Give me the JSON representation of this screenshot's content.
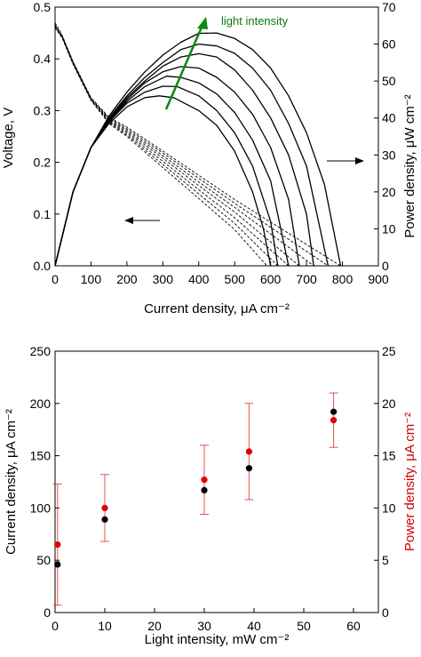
{
  "colors": {
    "axis": "#000000",
    "power_density_series": "#e00000",
    "current_density_series": "#000000",
    "light_arrow": "#0a8a0a",
    "power_axis_title": "#d00000"
  },
  "chart_data": [
    {
      "type": "line",
      "xlabel": "Current density, μA cm⁻²",
      "ylabel": "Voltage, V",
      "y2label": "Power density, μW cm⁻²",
      "xlim": [
        0,
        900
      ],
      "ylim": [
        0,
        0.5
      ],
      "y2lim": [
        0,
        70
      ],
      "xticks": [
        "0",
        "100",
        "200",
        "300",
        "400",
        "500",
        "600",
        "700",
        "800",
        "900"
      ],
      "yticks": [
        "0.0",
        "0.1",
        "0.2",
        "0.3",
        "0.4",
        "0.5"
      ],
      "y2ticks": [
        "0",
        "10",
        "20",
        "30",
        "40",
        "50",
        "60",
        "70"
      ],
      "annotation": "light intensity",
      "series": [
        {
          "style": "dashed",
          "axis": "left",
          "x": [
            0,
            20,
            50,
            100,
            150,
            200,
            300,
            400,
            500,
            590
          ],
          "y": [
            0.46,
            0.44,
            0.39,
            0.32,
            0.275,
            0.25,
            0.19,
            0.13,
            0.07,
            0.0
          ]
        },
        {
          "style": "dashed",
          "axis": "left",
          "x": [
            0,
            20,
            50,
            100,
            150,
            200,
            300,
            400,
            500,
            620
          ],
          "y": [
            0.46,
            0.44,
            0.39,
            0.32,
            0.277,
            0.253,
            0.196,
            0.139,
            0.082,
            0.0
          ]
        },
        {
          "style": "dashed",
          "axis": "left",
          "x": [
            0,
            20,
            50,
            100,
            150,
            200,
            300,
            400,
            500,
            650
          ],
          "y": [
            0.462,
            0.441,
            0.391,
            0.321,
            0.279,
            0.256,
            0.202,
            0.147,
            0.093,
            0.0
          ]
        },
        {
          "style": "dashed",
          "axis": "left",
          "x": [
            0,
            20,
            50,
            100,
            150,
            200,
            300,
            400,
            500,
            680
          ],
          "y": [
            0.464,
            0.442,
            0.392,
            0.322,
            0.281,
            0.259,
            0.208,
            0.155,
            0.104,
            0.0
          ]
        },
        {
          "style": "dashed",
          "axis": "left",
          "x": [
            0,
            20,
            50,
            100,
            150,
            200,
            300,
            400,
            500,
            720
          ],
          "y": [
            0.465,
            0.443,
            0.393,
            0.323,
            0.283,
            0.262,
            0.213,
            0.162,
            0.113,
            0.0
          ]
        },
        {
          "style": "dashed",
          "axis": "left",
          "x": [
            0,
            20,
            50,
            100,
            150,
            200,
            300,
            400,
            500,
            760
          ],
          "y": [
            0.467,
            0.444,
            0.394,
            0.324,
            0.285,
            0.265,
            0.218,
            0.169,
            0.121,
            0.0
          ]
        },
        {
          "style": "dashed",
          "axis": "left",
          "x": [
            0,
            20,
            50,
            100,
            150,
            200,
            300,
            400,
            500,
            795
          ],
          "y": [
            0.47,
            0.445,
            0.395,
            0.325,
            0.287,
            0.268,
            0.222,
            0.175,
            0.128,
            0.0
          ]
        },
        {
          "style": "solid",
          "axis": "right",
          "x": [
            0,
            50,
            100,
            150,
            200,
            250,
            290,
            330,
            400,
            450,
            500,
            550,
            580,
            600
          ],
          "y": [
            0,
            20,
            32,
            38.5,
            43,
            45.5,
            46,
            45.5,
            42,
            38,
            31,
            20,
            10,
            0
          ]
        },
        {
          "style": "solid",
          "axis": "right",
          "x": [
            0,
            50,
            100,
            150,
            200,
            250,
            300,
            340,
            400,
            450,
            500,
            550,
            600,
            620
          ],
          "y": [
            0,
            20,
            32,
            39,
            44,
            47,
            48.6,
            48.5,
            46,
            42,
            36,
            27,
            12,
            0
          ]
        },
        {
          "style": "solid",
          "axis": "right",
          "x": [
            0,
            50,
            100,
            150,
            200,
            250,
            310,
            350,
            400,
            450,
            500,
            550,
            600,
            650
          ],
          "y": [
            0,
            20,
            32,
            39.3,
            44.5,
            48.5,
            51.3,
            51,
            49.5,
            46.5,
            41.5,
            34,
            23,
            0
          ]
        },
        {
          "style": "solid",
          "axis": "right",
          "x": [
            0,
            50,
            100,
            150,
            200,
            250,
            300,
            350,
            400,
            450,
            500,
            550,
            600,
            650,
            680
          ],
          "y": [
            0,
            20,
            32,
            39.5,
            45,
            49.5,
            52.5,
            53.9,
            53.5,
            51,
            47,
            41,
            32,
            18,
            0
          ]
        },
        {
          "style": "solid",
          "axis": "right",
          "x": [
            0,
            50,
            100,
            150,
            200,
            250,
            300,
            350,
            400,
            450,
            500,
            550,
            600,
            650,
            700,
            720
          ],
          "y": [
            0,
            20,
            32,
            39.8,
            45.5,
            50,
            54,
            56.5,
            57.4,
            56.5,
            53,
            47.5,
            40,
            30,
            14,
            0
          ]
        },
        {
          "style": "solid",
          "axis": "right",
          "x": [
            0,
            50,
            100,
            150,
            200,
            250,
            300,
            350,
            400,
            450,
            500,
            550,
            600,
            650,
            700,
            760
          ],
          "y": [
            0,
            20,
            32,
            40,
            46,
            51,
            55,
            58.5,
            60,
            59.5,
            57.5,
            53.5,
            47.5,
            38.5,
            27,
            0
          ]
        },
        {
          "style": "solid",
          "axis": "right",
          "x": [
            0,
            50,
            100,
            150,
            200,
            250,
            300,
            350,
            400,
            450,
            500,
            550,
            600,
            650,
            700,
            750,
            795
          ],
          "y": [
            0,
            20,
            32,
            40.5,
            47,
            52.5,
            57,
            60.5,
            62.9,
            63,
            61.5,
            58.5,
            53.5,
            46,
            36,
            22,
            0
          ]
        }
      ]
    },
    {
      "type": "scatter",
      "xlabel": "Light intensity, mW cm⁻²",
      "ylabel": "Current density, μA cm⁻²",
      "y2label": "Power density, μA cm⁻²",
      "xlim": [
        0,
        65
      ],
      "ylim": [
        0,
        250
      ],
      "y2lim": [
        0,
        25
      ],
      "xticks": [
        "0",
        "10",
        "20",
        "30",
        "40",
        "50",
        "60"
      ],
      "yticks": [
        "0",
        "50",
        "100",
        "150",
        "200",
        "250"
      ],
      "y2ticks": [
        "0",
        "5",
        "10",
        "15",
        "20",
        "25"
      ],
      "series": [
        {
          "color": "black",
          "axis": "left",
          "x": [
            0.5,
            10,
            30,
            39,
            56
          ],
          "y": [
            46,
            89,
            117,
            138,
            192
          ],
          "err": [
            40,
            20,
            20,
            30,
            30
          ]
        },
        {
          "color": "red",
          "axis": "right",
          "x": [
            0.5,
            10,
            30,
            39,
            56
          ],
          "y": [
            6.5,
            10,
            12.7,
            15.4,
            18.4
          ],
          "err": [
            5.8,
            3.2,
            3.3,
            4.6,
            2.6
          ]
        }
      ]
    }
  ]
}
